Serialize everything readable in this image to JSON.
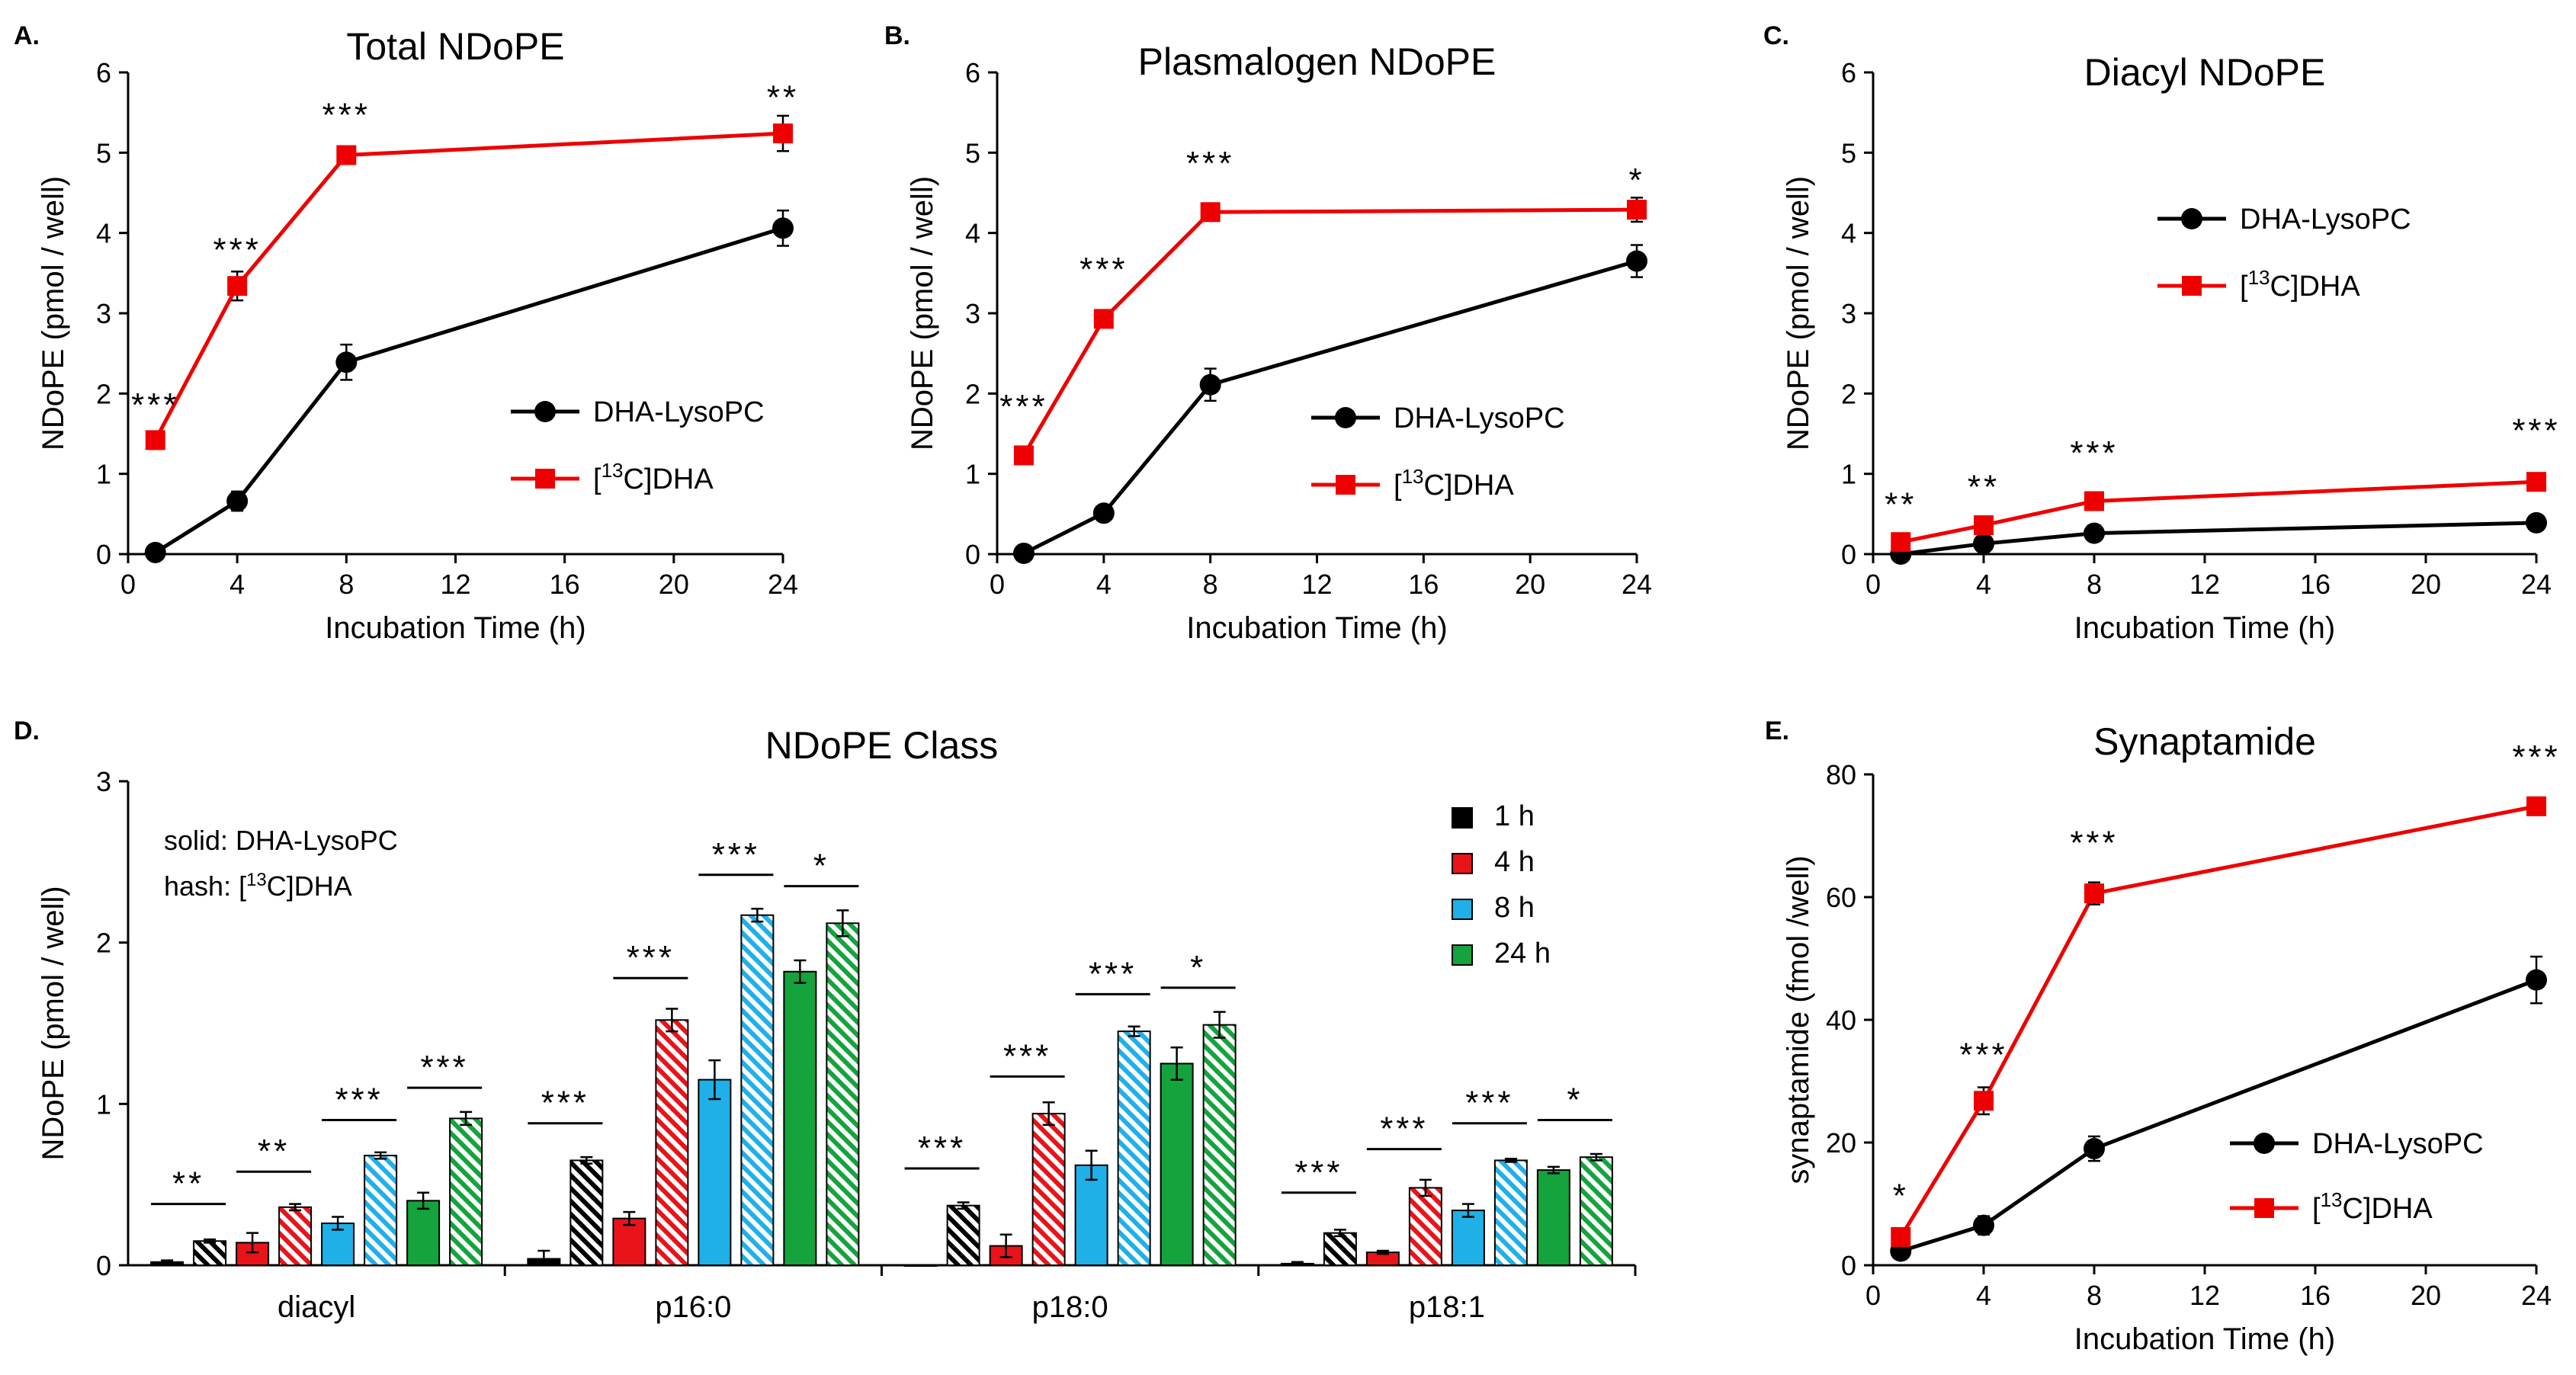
{
  "colors": {
    "dha_lysopc": "#000000",
    "c13_dha": "#ee0000",
    "bar_1h": "#000000",
    "bar_4h": "#e8141a",
    "bar_8h": "#1fb0e8",
    "bar_24h": "#14a33c"
  },
  "chart_data": [
    {
      "id": "A",
      "panel_label": "A.",
      "type": "line",
      "title": "Total NDoPE",
      "xlabel": "Incubation Time (h)",
      "ylabel": "NDoPE (pmol / well)",
      "xlim": [
        0,
        24
      ],
      "ylim": [
        0,
        6
      ],
      "xticks": [
        0,
        4,
        8,
        12,
        16,
        20,
        24
      ],
      "yticks": [
        0,
        1,
        2,
        3,
        4,
        5,
        6
      ],
      "x": [
        1,
        4,
        8,
        24
      ],
      "series": [
        {
          "name": "DHA-LysoPC",
          "marker": "circle",
          "color": "#000000",
          "values": [
            0.02,
            0.66,
            2.39,
            4.06
          ],
          "errors": [
            0.08,
            0.12,
            0.22,
            0.22
          ]
        },
        {
          "name": "[13C]DHA",
          "label_pre": "[",
          "label_sup": "13",
          "label_post": "C]DHA",
          "marker": "square",
          "color": "#ee0000",
          "values": [
            1.42,
            3.34,
            4.97,
            5.24
          ],
          "errors": [
            0.07,
            0.18,
            0.1,
            0.22
          ]
        }
      ],
      "annotations": [
        {
          "x": 1,
          "y": 1.72,
          "text": "***"
        },
        {
          "x": 4,
          "y": 3.65,
          "text": "***"
        },
        {
          "x": 8,
          "y": 5.33,
          "text": "***"
        },
        {
          "x": 24,
          "y": 5.55,
          "text": "**"
        }
      ],
      "legend_position": "lower-right"
    },
    {
      "id": "B",
      "panel_label": "B.",
      "type": "line",
      "title": "Plasmalogen NDoPE",
      "xlabel": "Incubation Time (h)",
      "ylabel": "NDoPE (pmol / well)",
      "xlim": [
        0,
        24
      ],
      "ylim": [
        0,
        6
      ],
      "xticks": [
        0,
        4,
        8,
        12,
        16,
        20,
        24
      ],
      "yticks": [
        0,
        1,
        2,
        3,
        4,
        5,
        6
      ],
      "x": [
        1,
        4,
        8,
        24
      ],
      "series": [
        {
          "name": "DHA-LysoPC",
          "marker": "circle",
          "color": "#000000",
          "values": [
            0.01,
            0.51,
            2.11,
            3.65
          ],
          "errors": [
            0.04,
            0.06,
            0.2,
            0.2
          ]
        },
        {
          "name": "[13C]DHA",
          "label_pre": "[",
          "label_sup": "13",
          "label_post": "C]DHA",
          "marker": "square",
          "color": "#ee0000",
          "values": [
            1.23,
            2.93,
            4.26,
            4.29
          ],
          "errors": [
            0.06,
            0.1,
            0.08,
            0.15
          ]
        }
      ],
      "annotations": [
        {
          "x": 1,
          "y": 1.7,
          "text": "***"
        },
        {
          "x": 4,
          "y": 3.41,
          "text": "***"
        },
        {
          "x": 8,
          "y": 4.73,
          "text": "***"
        },
        {
          "x": 24,
          "y": 4.52,
          "text": "*"
        }
      ],
      "legend_position": "lower-right"
    },
    {
      "id": "C",
      "panel_label": "C.",
      "type": "line",
      "title": "Diacyl NDoPE",
      "xlabel": "Incubation Time (h)",
      "ylabel": "NDoPE (pmol / well)",
      "xlim": [
        0,
        24
      ],
      "ylim": [
        0,
        6
      ],
      "xticks": [
        0,
        4,
        8,
        12,
        16,
        20,
        24
      ],
      "yticks": [
        0,
        1,
        2,
        3,
        4,
        5,
        6
      ],
      "x": [
        1,
        4,
        8,
        24
      ],
      "series": [
        {
          "name": "DHA-LysoPC",
          "marker": "circle",
          "color": "#000000",
          "values": [
            0.0,
            0.13,
            0.26,
            0.39
          ],
          "errors": [
            0.02,
            0.03,
            0.04,
            0.04
          ]
        },
        {
          "name": "[13C]DHA",
          "label_pre": "[",
          "label_sup": "13",
          "label_post": "C]DHA",
          "marker": "square",
          "color": "#ee0000",
          "values": [
            0.15,
            0.36,
            0.66,
            0.9
          ],
          "errors": [
            0.03,
            0.03,
            0.05,
            0.06
          ]
        }
      ],
      "annotations": [
        {
          "x": 1,
          "y": 0.48,
          "text": "**"
        },
        {
          "x": 4,
          "y": 0.7,
          "text": "**"
        },
        {
          "x": 8,
          "y": 1.12,
          "text": "***"
        },
        {
          "x": 24,
          "y": 1.4,
          "text": "***"
        }
      ],
      "legend_position": "upper-right"
    },
    {
      "id": "D",
      "panel_label": "D.",
      "type": "bar",
      "title": "NDoPE Class",
      "xlabel": "",
      "ylabel": "NDoPE (pmol / well)",
      "ylim": [
        0,
        3
      ],
      "yticks": [
        0,
        1,
        2,
        3
      ],
      "categories": [
        "diacyl",
        "p16:0",
        "p18:0",
        "p18:1"
      ],
      "note_solid": "solid: DHA-LysoPC",
      "note_hash_pre": "hash: [",
      "note_hash_sup": "13",
      "note_hash_post": "C]DHA",
      "timepoints": [
        "1 h",
        "4 h",
        "8 h",
        "24 h"
      ],
      "series": [
        {
          "timepoint": "1 h",
          "treatment": "DHA-LysoPC",
          "pattern": "solid",
          "color": "#000000",
          "values": [
            0.02,
            0.04,
            0.0,
            0.01
          ],
          "errors": [
            0.01,
            0.05,
            0.0,
            0.01
          ]
        },
        {
          "timepoint": "1 h",
          "treatment": "[13C]DHA",
          "pattern": "hash",
          "color": "#000000",
          "values": [
            0.15,
            0.65,
            0.37,
            0.2
          ],
          "errors": [
            0.01,
            0.02,
            0.02,
            0.02
          ]
        },
        {
          "timepoint": "4 h",
          "treatment": "DHA-LysoPC",
          "pattern": "solid",
          "color": "#e8141a",
          "values": [
            0.14,
            0.29,
            0.12,
            0.08
          ],
          "errors": [
            0.06,
            0.04,
            0.07,
            0.01
          ]
        },
        {
          "timepoint": "4 h",
          "treatment": "[13C]DHA",
          "pattern": "hash",
          "color": "#e8141a",
          "values": [
            0.36,
            1.52,
            0.94,
            0.48
          ],
          "errors": [
            0.02,
            0.07,
            0.07,
            0.05
          ]
        },
        {
          "timepoint": "8 h",
          "treatment": "DHA-LysoPC",
          "pattern": "solid",
          "color": "#1fb0e8",
          "values": [
            0.26,
            1.15,
            0.62,
            0.34
          ],
          "errors": [
            0.04,
            0.12,
            0.09,
            0.04
          ]
        },
        {
          "timepoint": "8 h",
          "treatment": "[13C]DHA",
          "pattern": "hash",
          "color": "#1fb0e8",
          "values": [
            0.68,
            2.17,
            1.45,
            0.65
          ],
          "errors": [
            0.02,
            0.04,
            0.03,
            0.01
          ]
        },
        {
          "timepoint": "24 h",
          "treatment": "DHA-LysoPC",
          "pattern": "solid",
          "color": "#14a33c",
          "values": [
            0.4,
            1.82,
            1.25,
            0.59
          ],
          "errors": [
            0.05,
            0.07,
            0.1,
            0.02
          ]
        },
        {
          "timepoint": "24 h",
          "treatment": "[13C]DHA",
          "pattern": "hash",
          "color": "#14a33c",
          "values": [
            0.91,
            2.12,
            1.49,
            0.67
          ],
          "errors": [
            0.04,
            0.08,
            0.08,
            0.02
          ]
        }
      ],
      "annotations": [
        {
          "category": "diacyl",
          "timepoint": "1 h",
          "y": 0.38,
          "text": "**"
        },
        {
          "category": "diacyl",
          "timepoint": "4 h",
          "y": 0.58,
          "text": "**"
        },
        {
          "category": "diacyl",
          "timepoint": "8 h",
          "y": 0.9,
          "text": "***"
        },
        {
          "category": "diacyl",
          "timepoint": "24 h",
          "y": 1.1,
          "text": "***"
        },
        {
          "category": "p16:0",
          "timepoint": "1 h",
          "y": 0.88,
          "text": "***"
        },
        {
          "category": "p16:0",
          "timepoint": "4 h",
          "y": 1.78,
          "text": "***"
        },
        {
          "category": "p16:0",
          "timepoint": "8 h",
          "y": 2.42,
          "text": "***"
        },
        {
          "category": "p16:0",
          "timepoint": "24 h",
          "y": 2.35,
          "text": "*"
        },
        {
          "category": "p18:0",
          "timepoint": "1 h",
          "y": 0.6,
          "text": "***"
        },
        {
          "category": "p18:0",
          "timepoint": "4 h",
          "y": 1.17,
          "text": "***"
        },
        {
          "category": "p18:0",
          "timepoint": "8 h",
          "y": 1.68,
          "text": "***"
        },
        {
          "category": "p18:0",
          "timepoint": "24 h",
          "y": 1.72,
          "text": "*"
        },
        {
          "category": "p18:1",
          "timepoint": "1 h",
          "y": 0.45,
          "text": "***"
        },
        {
          "category": "p18:1",
          "timepoint": "4 h",
          "y": 0.72,
          "text": "***"
        },
        {
          "category": "p18:1",
          "timepoint": "8 h",
          "y": 0.88,
          "text": "***"
        },
        {
          "category": "p18:1",
          "timepoint": "24 h",
          "y": 0.9,
          "text": "*"
        }
      ],
      "legend_position": "upper-right"
    },
    {
      "id": "E",
      "panel_label": "E.",
      "type": "line",
      "title": "Synaptamide",
      "xlabel": "Incubation Time (h)",
      "ylabel": "synaptamide (fmol /well)",
      "xlim": [
        0,
        24
      ],
      "ylim": [
        0,
        80
      ],
      "xticks": [
        0,
        4,
        8,
        12,
        16,
        20,
        24
      ],
      "yticks": [
        0,
        20,
        40,
        60,
        80
      ],
      "x": [
        1,
        4,
        8,
        24
      ],
      "series": [
        {
          "name": "DHA-LysoPC",
          "marker": "circle",
          "color": "#000000",
          "values": [
            2.3,
            6.5,
            19.0,
            46.5
          ],
          "errors": [
            0.8,
            1.5,
            2.0,
            3.8
          ]
        },
        {
          "name": "[13C]DHA",
          "label_pre": "[",
          "label_sup": "13",
          "label_post": "C]DHA",
          "marker": "square",
          "color": "#ee0000",
          "values": [
            4.6,
            26.8,
            60.6,
            74.8
          ],
          "errors": [
            1.0,
            2.2,
            1.8,
            0.8
          ]
        }
      ],
      "annotations": [
        {
          "x": 1,
          "y": 9.5,
          "text": "*"
        },
        {
          "x": 4,
          "y": 32.5,
          "text": "***"
        },
        {
          "x": 8,
          "y": 67,
          "text": "***"
        },
        {
          "x": 24,
          "y": 81,
          "text": "***"
        }
      ],
      "legend_position": "lower-right"
    }
  ]
}
